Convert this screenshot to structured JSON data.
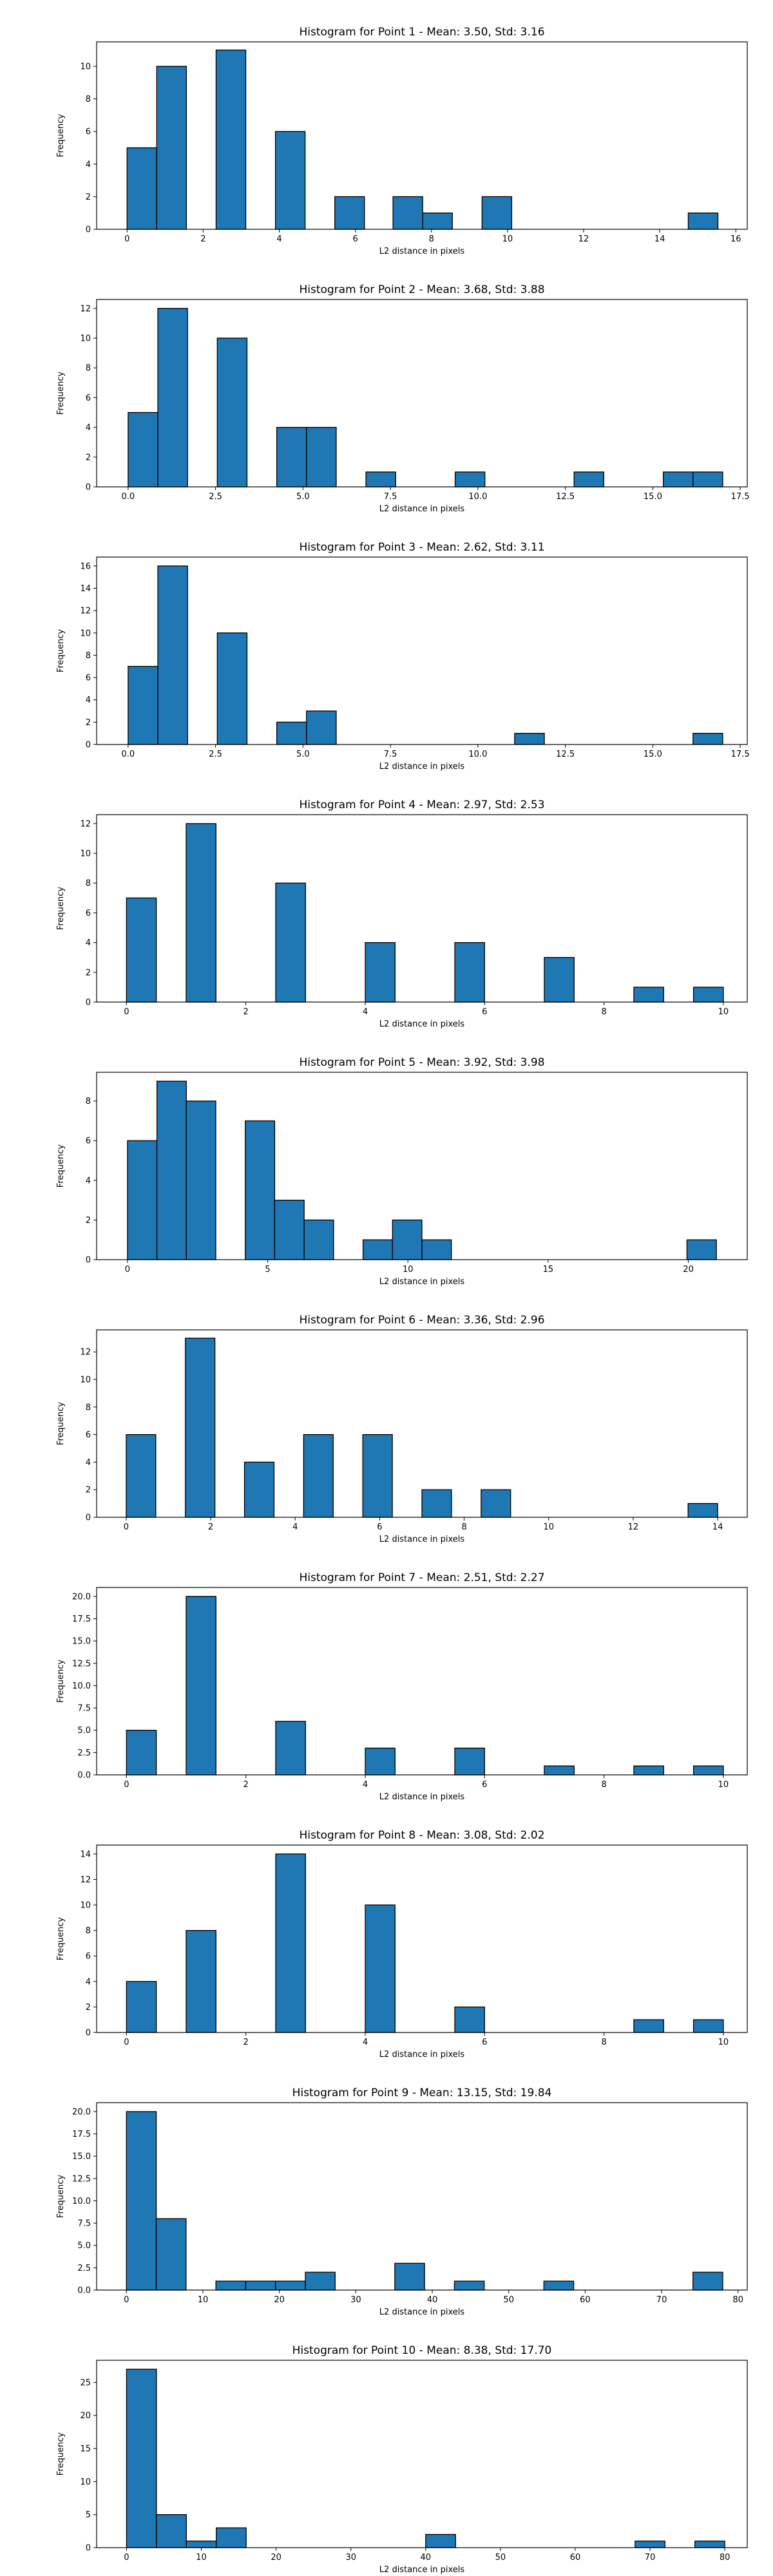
{
  "chart_data": [
    {
      "type": "bar",
      "title": "Histogram for Point 1 - Mean: 3.50, Std: 3.16",
      "xlabel": "L2 distance in pixels",
      "ylabel": "Frequency",
      "xlim": [
        -0.8,
        16.3
      ],
      "ylim": [
        0,
        11.5
      ],
      "xticks": [
        0,
        2,
        4,
        6,
        8,
        10,
        12,
        14,
        16
      ],
      "yticks": [
        0,
        2,
        4,
        6,
        8,
        10
      ],
      "bins": [
        [
          0,
          0.78,
          5
        ],
        [
          0.78,
          1.56,
          10
        ],
        [
          2.34,
          3.12,
          11
        ],
        [
          3.9,
          4.68,
          6
        ],
        [
          5.46,
          6.24,
          2
        ],
        [
          6.99,
          7.77,
          2
        ],
        [
          7.77,
          8.55,
          1
        ],
        [
          9.33,
          10.11,
          2
        ],
        [
          14.75,
          15.53,
          1
        ]
      ]
    },
    {
      "type": "bar",
      "title": "Histogram for Point 2 - Mean: 3.68, Std: 3.88",
      "xlabel": "L2 distance in pixels",
      "ylabel": "Frequency",
      "xlim": [
        -0.9,
        17.7
      ],
      "ylim": [
        0,
        12.6
      ],
      "xticks": [
        0.0,
        2.5,
        5.0,
        7.5,
        10.0,
        12.5,
        15.0,
        17.5
      ],
      "yticks": [
        0,
        2,
        4,
        6,
        8,
        10,
        12
      ],
      "bins": [
        [
          0,
          0.85,
          5
        ],
        [
          0.85,
          1.7,
          12
        ],
        [
          2.55,
          3.4,
          10
        ],
        [
          4.25,
          5.1,
          4
        ],
        [
          5.1,
          5.95,
          4
        ],
        [
          6.8,
          7.65,
          1
        ],
        [
          9.35,
          10.2,
          1
        ],
        [
          12.75,
          13.6,
          1
        ],
        [
          15.3,
          16.15,
          1
        ],
        [
          16.15,
          17.0,
          1
        ]
      ]
    },
    {
      "type": "bar",
      "title": "Histogram for Point 3 - Mean: 2.62, Std: 3.11",
      "xlabel": "L2 distance in pixels",
      "ylabel": "Frequency",
      "xlim": [
        -0.9,
        17.7
      ],
      "ylim": [
        0,
        16.8
      ],
      "xticks": [
        0.0,
        2.5,
        5.0,
        7.5,
        10.0,
        12.5,
        15.0,
        17.5
      ],
      "yticks": [
        0,
        2,
        4,
        6,
        8,
        10,
        12,
        14,
        16
      ],
      "bins": [
        [
          0,
          0.85,
          7
        ],
        [
          0.85,
          1.7,
          16
        ],
        [
          2.55,
          3.4,
          10
        ],
        [
          4.25,
          5.1,
          2
        ],
        [
          5.1,
          5.95,
          3
        ],
        [
          11.05,
          11.9,
          1
        ],
        [
          16.15,
          17.0,
          1
        ]
      ]
    },
    {
      "type": "bar",
      "title": "Histogram for Point 4 - Mean: 2.97, Std: 2.53",
      "xlabel": "L2 distance in pixels",
      "ylabel": "Frequency",
      "xlim": [
        -0.5,
        10.4
      ],
      "ylim": [
        0,
        12.6
      ],
      "xticks": [
        0,
        2,
        4,
        6,
        8,
        10
      ],
      "yticks": [
        0,
        2,
        4,
        6,
        8,
        10,
        12
      ],
      "bins": [
        [
          0,
          0.5,
          7
        ],
        [
          1.0,
          1.5,
          12
        ],
        [
          2.5,
          3.0,
          8
        ],
        [
          4.0,
          4.5,
          4
        ],
        [
          5.5,
          6.0,
          4
        ],
        [
          7.0,
          7.5,
          3
        ],
        [
          8.5,
          9.0,
          1
        ],
        [
          9.5,
          10.0,
          1
        ]
      ]
    },
    {
      "type": "bar",
      "title": "Histogram for Point 5 - Mean: 3.92, Std: 3.98",
      "xlabel": "L2 distance in pixels",
      "ylabel": "Frequency",
      "xlim": [
        -1.1,
        22.1
      ],
      "ylim": [
        0,
        9.45
      ],
      "xticks": [
        0,
        5,
        10,
        15,
        20
      ],
      "yticks": [
        0,
        2,
        4,
        6,
        8
      ],
      "bins": [
        [
          0,
          1.05,
          6
        ],
        [
          1.05,
          2.1,
          9
        ],
        [
          2.1,
          3.15,
          8
        ],
        [
          4.2,
          5.25,
          7
        ],
        [
          5.25,
          6.3,
          3
        ],
        [
          6.3,
          7.35,
          2
        ],
        [
          8.4,
          9.45,
          1
        ],
        [
          9.45,
          10.5,
          2
        ],
        [
          10.5,
          11.55,
          1
        ],
        [
          19.95,
          21.0,
          1
        ]
      ]
    },
    {
      "type": "bar",
      "title": "Histogram for Point 6 - Mean: 3.36, Std: 2.96",
      "xlabel": "L2 distance in pixels",
      "ylabel": "Frequency",
      "xlim": [
        -0.7,
        14.7
      ],
      "ylim": [
        0,
        13.6
      ],
      "xticks": [
        0,
        2,
        4,
        6,
        8,
        10,
        12,
        14
      ],
      "yticks": [
        0,
        2,
        4,
        6,
        8,
        10,
        12
      ],
      "bins": [
        [
          0,
          0.7,
          6
        ],
        [
          1.4,
          2.1,
          13
        ],
        [
          2.8,
          3.5,
          4
        ],
        [
          4.2,
          4.9,
          6
        ],
        [
          5.6,
          6.3,
          6
        ],
        [
          7.0,
          7.7,
          2
        ],
        [
          8.4,
          9.1,
          2
        ],
        [
          13.3,
          14.0,
          1
        ]
      ]
    },
    {
      "type": "bar",
      "title": "Histogram for Point 7 - Mean: 2.51, Std: 2.27",
      "xlabel": "L2 distance in pixels",
      "ylabel": "Frequency",
      "xlim": [
        -0.5,
        10.4
      ],
      "ylim": [
        0,
        21.0
      ],
      "xticks": [
        0,
        2,
        4,
        6,
        8,
        10
      ],
      "yticks": [
        0.0,
        2.5,
        5.0,
        7.5,
        10.0,
        12.5,
        15.0,
        17.5,
        20.0
      ],
      "bins": [
        [
          0,
          0.5,
          5
        ],
        [
          1.0,
          1.5,
          20
        ],
        [
          2.5,
          3.0,
          6
        ],
        [
          4.0,
          4.5,
          3
        ],
        [
          5.5,
          6.0,
          3
        ],
        [
          7.0,
          7.5,
          1
        ],
        [
          8.5,
          9.0,
          1
        ],
        [
          9.5,
          10.0,
          1
        ]
      ]
    },
    {
      "type": "bar",
      "title": "Histogram for Point 8 - Mean: 3.08, Std: 2.02",
      "xlabel": "L2 distance in pixels",
      "ylabel": "Frequency",
      "xlim": [
        -0.5,
        10.4
      ],
      "ylim": [
        0,
        14.7
      ],
      "xticks": [
        0,
        2,
        4,
        6,
        8,
        10
      ],
      "yticks": [
        0,
        2,
        4,
        6,
        8,
        10,
        12,
        14
      ],
      "bins": [
        [
          0,
          0.5,
          4
        ],
        [
          1.0,
          1.5,
          8
        ],
        [
          2.5,
          3.0,
          14
        ],
        [
          4.0,
          4.5,
          10
        ],
        [
          5.5,
          6.0,
          2
        ],
        [
          8.5,
          9.0,
          1
        ],
        [
          9.5,
          10.0,
          1
        ]
      ]
    },
    {
      "type": "bar",
      "title": "Histogram for Point 9 - Mean: 13.15, Std: 19.84",
      "xlabel": "L2 distance in pixels",
      "ylabel": "Frequency",
      "xlim": [
        -3.9,
        81.2
      ],
      "ylim": [
        0,
        21.0
      ],
      "xticks": [
        0,
        10,
        20,
        30,
        40,
        50,
        60,
        70,
        80
      ],
      "yticks": [
        0.0,
        2.5,
        5.0,
        7.5,
        10.0,
        12.5,
        15.0,
        17.5,
        20.0
      ],
      "bins": [
        [
          0,
          3.9,
          20
        ],
        [
          3.9,
          7.8,
          8
        ],
        [
          11.7,
          15.6,
          1
        ],
        [
          15.6,
          19.5,
          1
        ],
        [
          19.5,
          23.4,
          1
        ],
        [
          23.4,
          27.3,
          2
        ],
        [
          35.1,
          39.0,
          3
        ],
        [
          42.9,
          46.8,
          1
        ],
        [
          54.6,
          58.5,
          1
        ],
        [
          74.1,
          78.0,
          2
        ]
      ]
    },
    {
      "type": "bar",
      "title": "Histogram for Point 10 - Mean: 8.38, Std: 17.70",
      "xlabel": "L2 distance in pixels",
      "ylabel": "Frequency",
      "xlim": [
        -4.0,
        83.0
      ],
      "ylim": [
        0,
        28.35
      ],
      "xticks": [
        0,
        10,
        20,
        30,
        40,
        50,
        60,
        70,
        80
      ],
      "yticks": [
        0,
        5,
        10,
        15,
        20,
        25
      ],
      "bins": [
        [
          0,
          4.0,
          27
        ],
        [
          4.0,
          8.0,
          5
        ],
        [
          8.0,
          12.0,
          1
        ],
        [
          12.0,
          16.0,
          3
        ],
        [
          40.0,
          44.0,
          2
        ],
        [
          68.0,
          72.0,
          1
        ],
        [
          76.0,
          80.0,
          1
        ]
      ]
    }
  ],
  "colors": {
    "bar_fill": "#1f77b4",
    "bar_edge": "#000000",
    "axis": "#000000",
    "text": "#000000"
  }
}
